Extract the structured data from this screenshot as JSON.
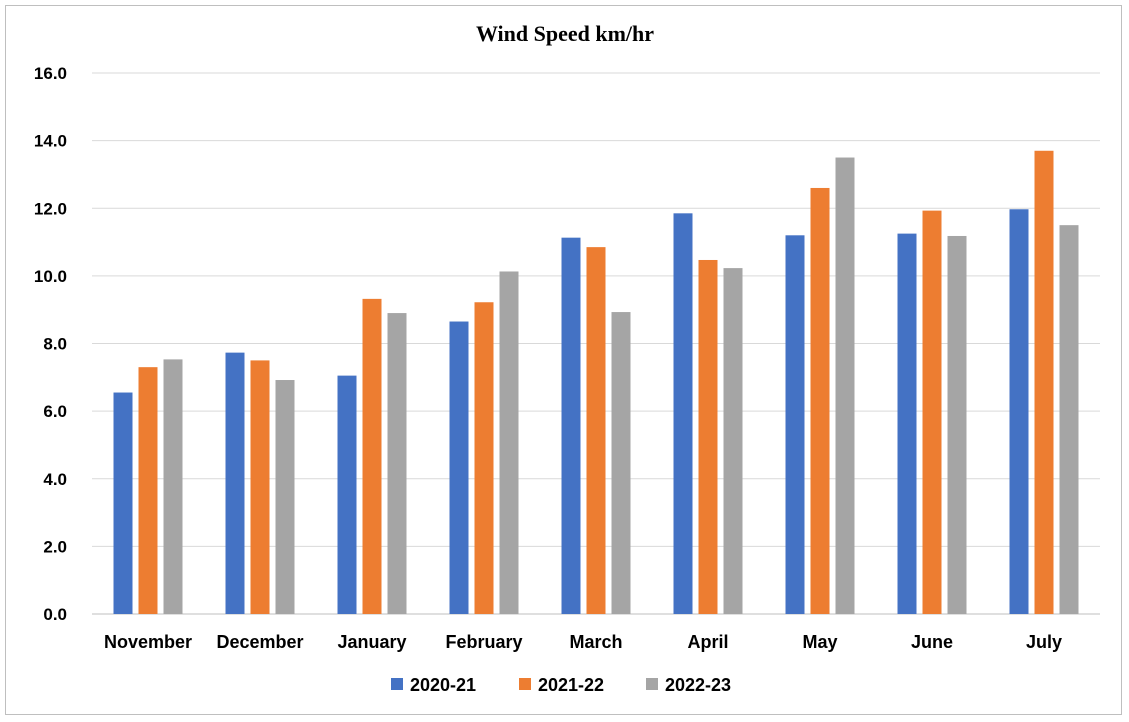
{
  "chart_data": {
    "type": "bar",
    "title": "Wind Speed km/hr",
    "xlabel": "",
    "ylabel": "",
    "categories": [
      "November",
      "December",
      "January",
      "February",
      "March",
      "April",
      "May",
      "June",
      "July"
    ],
    "series": [
      {
        "name": "2020-21",
        "color": "#4472c4",
        "values": [
          6.55,
          7.73,
          7.05,
          8.65,
          11.13,
          11.85,
          11.2,
          11.25,
          11.97
        ]
      },
      {
        "name": "2021-22",
        "color": "#ed7d31",
        "values": [
          7.3,
          7.5,
          9.32,
          9.22,
          10.85,
          10.47,
          12.6,
          11.93,
          13.7
        ]
      },
      {
        "name": "2022-23",
        "color": "#a5a5a5",
        "values": [
          7.53,
          6.92,
          8.9,
          10.13,
          8.93,
          10.23,
          13.5,
          11.18,
          11.5
        ]
      }
    ],
    "ylim": [
      0,
      16
    ],
    "yticks": [
      "0.0",
      "2.0",
      "4.0",
      "6.0",
      "8.0",
      "10.0",
      "12.0",
      "14.0",
      "16.0"
    ],
    "grid": true,
    "legend_position": "bottom"
  }
}
